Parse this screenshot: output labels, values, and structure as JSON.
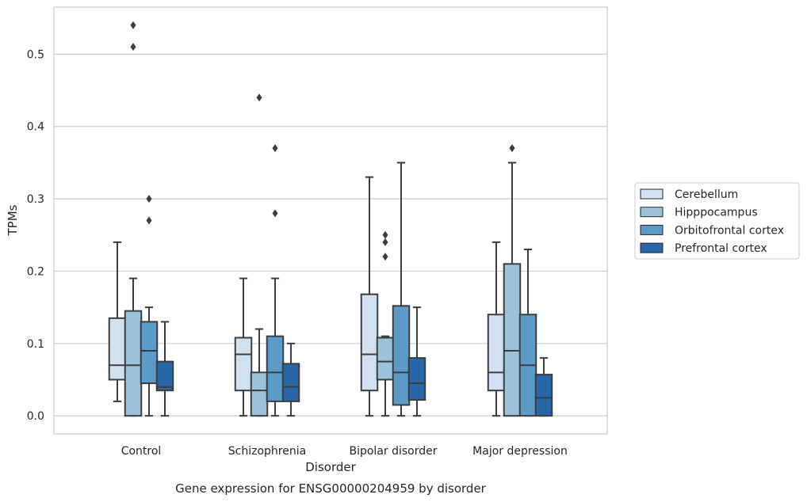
{
  "chart_data": {
    "type": "box",
    "title": "Gene expression for ENSG00000204959 by disorder",
    "xlabel": "Disorder",
    "ylabel": "TPMs",
    "ylim": [
      -0.025,
      0.565
    ],
    "yticks": [
      "0.0",
      "0.1",
      "0.2",
      "0.3",
      "0.4",
      "0.5"
    ],
    "grid": "horizontal",
    "legend_position": "right",
    "categories": [
      "Control",
      "Schizophrenia",
      "Bipolar disorder",
      "Major depression"
    ],
    "series": [
      {
        "name": "Cerebellum",
        "color": "#d1e1f0",
        "boxes": [
          {
            "whislo": 0.02,
            "q1": 0.05,
            "med": 0.07,
            "q3": 0.135,
            "whishi": 0.24,
            "fliers": []
          },
          {
            "whislo": 0.0,
            "q1": 0.035,
            "med": 0.085,
            "q3": 0.108,
            "whishi": 0.19,
            "fliers": []
          },
          {
            "whislo": 0.0,
            "q1": 0.035,
            "med": 0.085,
            "q3": 0.168,
            "whishi": 0.33,
            "fliers": []
          },
          {
            "whislo": 0.0,
            "q1": 0.035,
            "med": 0.06,
            "q3": 0.14,
            "whishi": 0.24,
            "fliers": []
          }
        ]
      },
      {
        "name": "Hipppocampus",
        "color": "#9ac2db",
        "boxes": [
          {
            "whislo": 0.0,
            "q1": 0.0,
            "med": 0.07,
            "q3": 0.145,
            "whishi": 0.19,
            "fliers": [
              0.54,
              0.51
            ]
          },
          {
            "whislo": 0.0,
            "q1": 0.0,
            "med": 0.035,
            "q3": 0.06,
            "whishi": 0.12,
            "fliers": [
              0.44
            ]
          },
          {
            "whislo": 0.0,
            "q1": 0.05,
            "med": 0.075,
            "q3": 0.108,
            "whishi": 0.11,
            "fliers": [
              0.25,
              0.24,
              0.22
            ]
          },
          {
            "whislo": 0.0,
            "q1": 0.0,
            "med": 0.09,
            "q3": 0.21,
            "whishi": 0.35,
            "fliers": [
              0.37
            ]
          }
        ]
      },
      {
        "name": "Orbitofrontal cortex",
        "color": "#5a9bc8",
        "boxes": [
          {
            "whislo": 0.0,
            "q1": 0.045,
            "med": 0.09,
            "q3": 0.13,
            "whishi": 0.15,
            "fliers": [
              0.3,
              0.27
            ]
          },
          {
            "whislo": 0.0,
            "q1": 0.02,
            "med": 0.06,
            "q3": 0.11,
            "whishi": 0.19,
            "fliers": [
              0.37,
              0.28
            ]
          },
          {
            "whislo": 0.0,
            "q1": 0.015,
            "med": 0.06,
            "q3": 0.152,
            "whishi": 0.35,
            "fliers": []
          },
          {
            "whislo": 0.0,
            "q1": 0.0,
            "med": 0.07,
            "q3": 0.14,
            "whishi": 0.23,
            "fliers": []
          }
        ]
      },
      {
        "name": "Prefrontal cortex",
        "color": "#2767a8",
        "boxes": [
          {
            "whislo": 0.0,
            "q1": 0.035,
            "med": 0.04,
            "q3": 0.075,
            "whishi": 0.13,
            "fliers": []
          },
          {
            "whislo": 0.0,
            "q1": 0.02,
            "med": 0.04,
            "q3": 0.072,
            "whishi": 0.1,
            "fliers": []
          },
          {
            "whislo": 0.0,
            "q1": 0.022,
            "med": 0.045,
            "q3": 0.08,
            "whishi": 0.15,
            "fliers": []
          },
          {
            "whislo": 0.0,
            "q1": 0.0,
            "med": 0.025,
            "q3": 0.057,
            "whishi": 0.08,
            "fliers": []
          }
        ]
      }
    ]
  }
}
